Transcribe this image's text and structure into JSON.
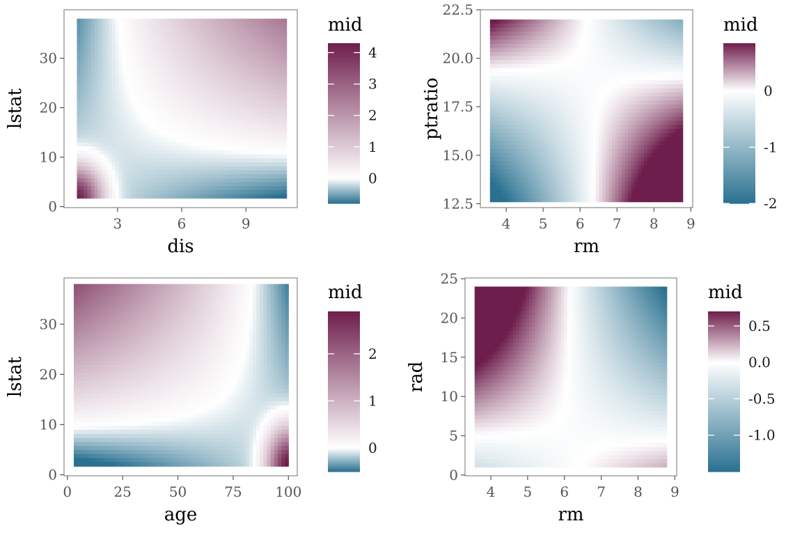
{
  "colors": {
    "high": "#6e1e4c",
    "mid": "#ffffff",
    "low": "#2a7190",
    "panel_border": "#8a8a8a",
    "tick_color": "#555555"
  },
  "chart_data": [
    {
      "type": "heatmap",
      "xlabel": "dis",
      "ylabel": "lstat",
      "legend_title": "mid",
      "x_range": [
        1.1,
        10.9
      ],
      "y_range": [
        1.7,
        38.0
      ],
      "xlim": [
        0.5,
        11.4
      ],
      "ylim": [
        -0.2,
        39.8
      ],
      "x_ticks": [
        3,
        6,
        9
      ],
      "x_tick_labels": [
        "3",
        "6",
        "9"
      ],
      "y_ticks": [
        0,
        10,
        20,
        30
      ],
      "y_tick_labels": [
        "0",
        "10",
        "20",
        "30"
      ],
      "z_range": [
        -0.8,
        4.3
      ],
      "legend_ticks": [
        0,
        1,
        2,
        3,
        4
      ],
      "legend_tick_labels": [
        "0",
        "1",
        "2",
        "3",
        "4"
      ],
      "surface": "Interaction effect: high (~4.2) at low dis (~1) and low lstat (~2); near zero along dis≈2.5 and lstat≈9 contours; ~1 in upper-right region; slightly negative (-0.3) along bottom and left edges."
    },
    {
      "type": "heatmap",
      "xlabel": "rm",
      "ylabel": "ptratio",
      "legend_title": "mid",
      "x_range": [
        3.56,
        8.78
      ],
      "y_range": [
        12.6,
        22.0
      ],
      "xlim": [
        3.3,
        9.05
      ],
      "ylim": [
        12.3,
        22.5
      ],
      "x_ticks": [
        4,
        5,
        6,
        7,
        8,
        9
      ],
      "x_tick_labels": [
        "4",
        "5",
        "6",
        "7",
        "8",
        "9"
      ],
      "y_ticks": [
        12.5,
        15.0,
        17.5,
        20.0,
        22.5
      ],
      "y_tick_labels": [
        "12.5",
        "15.0",
        "17.5",
        "20.0",
        "22.5"
      ],
      "z_range": [
        -2.0,
        0.85
      ],
      "legend_ticks": [
        0,
        -1,
        -2
      ],
      "legend_tick_labels": [
        "0",
        "-1",
        "-2"
      ],
      "surface": "Saddle: negative (~-1.3) at low rm / low ptratio and (~-2) at high rm / high ptratio; positive (~0.5) at high rm / low ptratio and (~0.2) at low rm / high ptratio."
    },
    {
      "type": "heatmap",
      "xlabel": "age",
      "ylabel": "lstat",
      "legend_title": "mid",
      "x_range": [
        2.9,
        100.0
      ],
      "y_range": [
        1.7,
        38.0
      ],
      "xlim": [
        -1.5,
        104
      ],
      "ylim": [
        -0.2,
        39.2
      ],
      "x_ticks": [
        0,
        25,
        50,
        75,
        100
      ],
      "x_tick_labels": [
        "0",
        "25",
        "50",
        "75",
        "100"
      ],
      "y_ticks": [
        0,
        10,
        20,
        30
      ],
      "y_tick_labels": [
        "0",
        "10",
        "20",
        "30"
      ],
      "z_range": [
        -0.5,
        2.9
      ],
      "legend_ticks": [
        0,
        1,
        2
      ],
      "legend_tick_labels": [
        "0",
        "1",
        "2"
      ],
      "surface": "Positive (~1.8) at low age / high lstat, fading to zero near lstat≈8 and age≈90; strong positive (~2.9) at age=100 / low lstat; slightly negative below lstat≈6."
    },
    {
      "type": "heatmap",
      "xlabel": "rm",
      "ylabel": "rad",
      "legend_title": "mid",
      "x_range": [
        3.56,
        8.78
      ],
      "y_range": [
        1,
        24
      ],
      "xlim": [
        3.3,
        9.05
      ],
      "ylim": [
        -0.1,
        25.1
      ],
      "x_ticks": [
        4,
        5,
        6,
        7,
        8,
        9
      ],
      "x_tick_labels": [
        "4",
        "5",
        "6",
        "7",
        "8",
        "9"
      ],
      "y_ticks": [
        0,
        5,
        10,
        15,
        20,
        25
      ],
      "y_tick_labels": [
        "0",
        "5",
        "10",
        "15",
        "20",
        "25"
      ],
      "z_range": [
        -1.5,
        0.7
      ],
      "legend_ticks": [
        0.5,
        0.0,
        -0.5,
        -1.0
      ],
      "legend_tick_labels": [
        "0.5",
        "0.0",
        "-0.5",
        "-1.0"
      ],
      "surface": "Negative (~-1.4) at high rm / high rad and (~-0.8) at low rm / low rad; positive (~0.3) at low rm / high rad and (~0.4) at high rm / low rad."
    }
  ]
}
